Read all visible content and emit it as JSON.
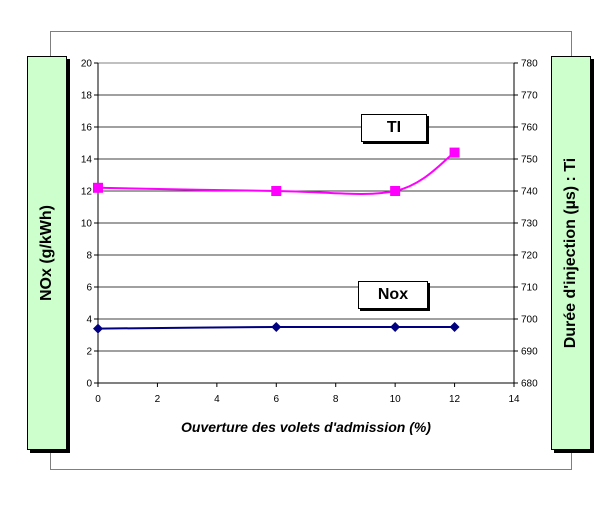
{
  "chart_data": {
    "type": "line",
    "xlabel": "Ouverture des volets d'admission (%)",
    "ylabel_left": "NOx (g/kWh)",
    "ylabel_right": "Durée d'injection (µs) : Ti",
    "xlim": [
      0,
      14
    ],
    "x_ticks": [
      "0",
      "2",
      "4",
      "6",
      "8",
      "10",
      "12",
      "14"
    ],
    "ylim_left": [
      0,
      20
    ],
    "y_ticks_left": [
      "0",
      "2",
      "4",
      "6",
      "8",
      "10",
      "12",
      "14",
      "16",
      "18",
      "20"
    ],
    "ylim_right": [
      680,
      780
    ],
    "y_ticks_right": [
      "680",
      "690",
      "700",
      "710",
      "720",
      "730",
      "740",
      "750",
      "760",
      "770",
      "780"
    ],
    "grid": "horizontal",
    "series": [
      {
        "name": "TI",
        "axis": "right",
        "color": "#ff00ff",
        "marker": "square",
        "x": [
          0,
          6,
          10,
          12
        ],
        "values": [
          741,
          740,
          740,
          752
        ]
      },
      {
        "name": "Nox",
        "axis": "left",
        "color": "#000080",
        "marker": "diamond",
        "x": [
          0,
          6,
          10,
          12
        ],
        "values": [
          3.4,
          3.5,
          3.5,
          3.5
        ]
      }
    ]
  }
}
